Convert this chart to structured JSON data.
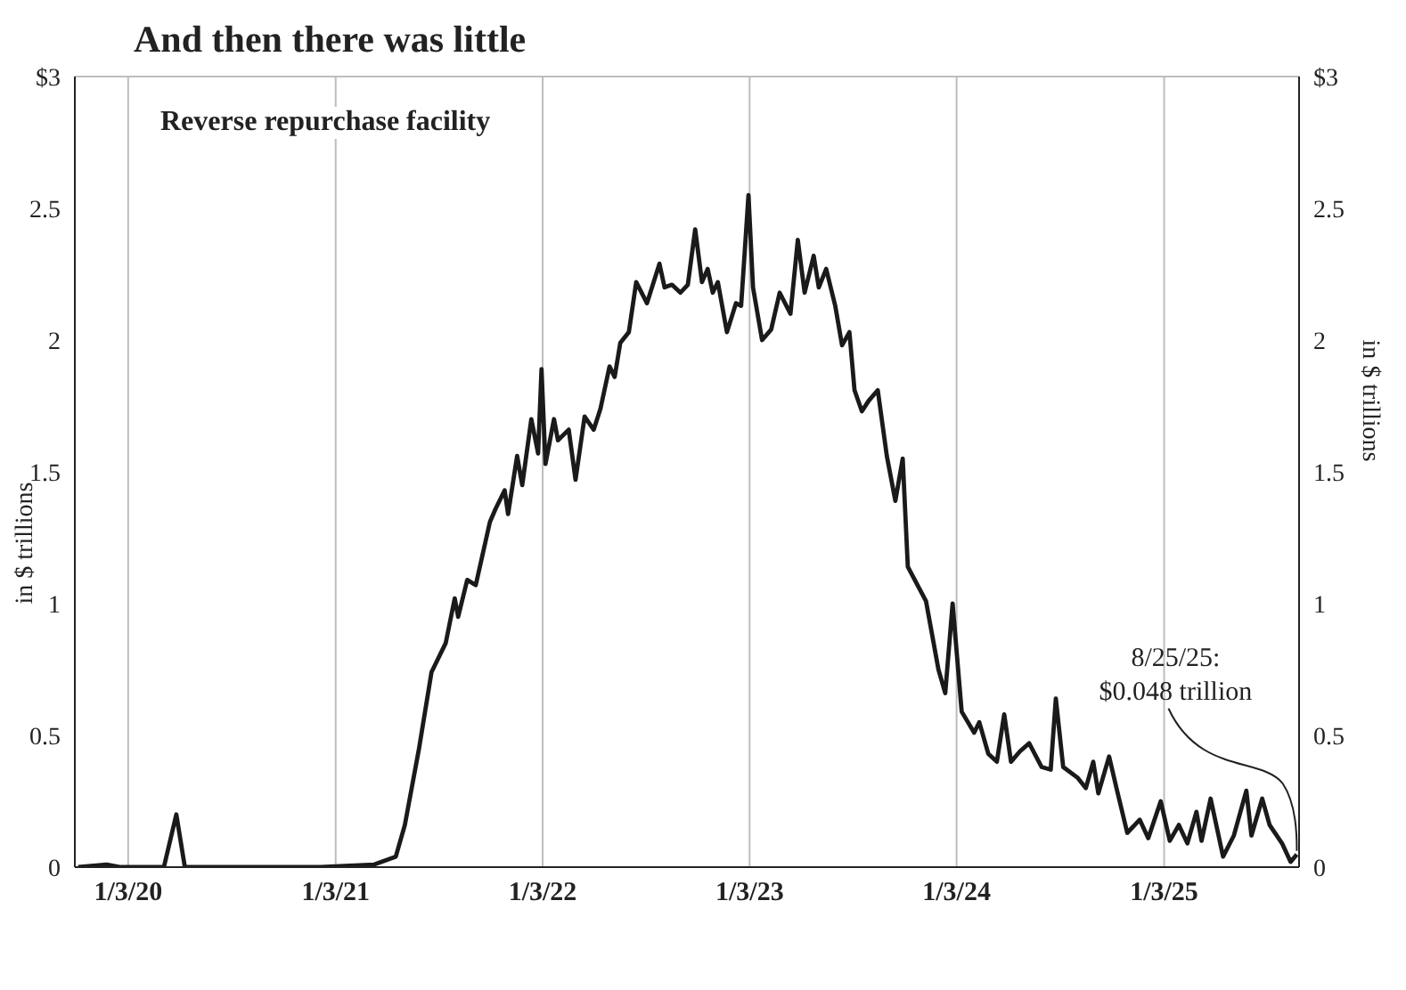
{
  "chart_data": {
    "type": "line",
    "title": "And then there was little",
    "subtitle": "Reverse repurchase facility",
    "ylabel": "in $ trillions",
    "y2label": "in $ trillions",
    "x": [
      "2019-10-07",
      "2019-11-26",
      "2019-12-21",
      "2020-03-06",
      "2020-03-28",
      "2020-04-12",
      "2020-12-07",
      "2021-03-12",
      "2021-04-19",
      "2021-05-05",
      "2021-05-30",
      "2021-06-21",
      "2021-07-16",
      "2021-08-01",
      "2021-08-07",
      "2021-08-23",
      "2021-09-07",
      "2021-10-02",
      "2021-10-12",
      "2021-10-28",
      "2021-11-03",
      "2021-11-19",
      "2021-11-28",
      "2021-12-14",
      "2021-12-26",
      "2022-01-01",
      "2022-01-08",
      "2022-01-23",
      "2022-01-30",
      "2022-02-18",
      "2022-03-02",
      "2022-03-18",
      "2022-04-03",
      "2022-04-15",
      "2022-05-01",
      "2022-05-10",
      "2022-05-20",
      "2022-06-04",
      "2022-06-17",
      "2022-07-06",
      "2022-07-28",
      "2022-08-06",
      "2022-08-19",
      "2022-09-03",
      "2022-09-16",
      "2022-09-29",
      "2022-10-11",
      "2022-10-21",
      "2022-10-30",
      "2022-11-08",
      "2022-11-24",
      "2022-12-10",
      "2022-12-19",
      "2023-01-01",
      "2023-01-09",
      "2023-01-25",
      "2023-02-10",
      "2023-02-25",
      "2023-03-16",
      "2023-03-29",
      "2023-04-10",
      "2023-04-26",
      "2023-05-05",
      "2023-05-18",
      "2023-06-03",
      "2023-06-15",
      "2023-06-28",
      "2023-07-07",
      "2023-07-20",
      "2023-08-01",
      "2023-08-17",
      "2023-09-02",
      "2023-09-17",
      "2023-09-30",
      "2023-10-09",
      "2023-11-10",
      "2023-12-02",
      "2023-12-14",
      "2023-12-27",
      "2024-01-12",
      "2024-02-03",
      "2024-02-12",
      "2024-02-28",
      "2024-03-14",
      "2024-03-27",
      "2024-04-08",
      "2024-04-24",
      "2024-05-10",
      "2024-06-01",
      "2024-06-17",
      "2024-06-26",
      "2024-07-09",
      "2024-08-03",
      "2024-08-18",
      "2024-08-31",
      "2024-09-09",
      "2024-09-28",
      "2024-10-11",
      "2024-10-30",
      "2024-11-21",
      "2024-12-06",
      "2024-12-28",
      "2025-01-13",
      "2025-01-29",
      "2025-02-13",
      "2025-03-01",
      "2025-03-10",
      "2025-03-26",
      "2025-04-17",
      "2025-05-06",
      "2025-05-28",
      "2025-06-06",
      "2025-06-25",
      "2025-07-08",
      "2025-07-30",
      "2025-08-14",
      "2025-08-25"
    ],
    "series": [
      {
        "color": "#1a1a1a",
        "values": [
          0,
          0.01,
          0,
          0,
          0.2,
          0,
          0,
          0.01,
          0.04,
          0.16,
          0.45,
          0.74,
          0.85,
          1.02,
          0.95,
          1.09,
          1.07,
          1.31,
          1.36,
          1.43,
          1.34,
          1.56,
          1.45,
          1.7,
          1.57,
          1.89,
          1.53,
          1.7,
          1.62,
          1.66,
          1.47,
          1.71,
          1.66,
          1.74,
          1.9,
          1.86,
          1.99,
          2.03,
          2.22,
          2.14,
          2.29,
          2.2,
          2.21,
          2.18,
          2.21,
          2.42,
          2.22,
          2.27,
          2.18,
          2.22,
          2.03,
          2.14,
          2.13,
          2.55,
          2.2,
          2,
          2.04,
          2.18,
          2.1,
          2.38,
          2.18,
          2.32,
          2.2,
          2.27,
          2.13,
          1.98,
          2.03,
          1.81,
          1.73,
          1.77,
          1.81,
          1.56,
          1.39,
          1.55,
          1.14,
          1.01,
          0.75,
          0.66,
          1,
          0.59,
          0.51,
          0.55,
          0.43,
          0.4,
          0.58,
          0.4,
          0.44,
          0.47,
          0.38,
          0.37,
          0.64,
          0.38,
          0.34,
          0.3,
          0.4,
          0.28,
          0.42,
          0.3,
          0.13,
          0.18,
          0.11,
          0.25,
          0.1,
          0.16,
          0.09,
          0.21,
          0.1,
          0.26,
          0.04,
          0.12,
          0.29,
          0.12,
          0.26,
          0.16,
          0.09,
          0.02,
          0.048
        ]
      }
    ],
    "xlim": [
      "2019-10-01",
      "2025-08-29"
    ],
    "xticks": [
      {
        "value": "2020-01-03",
        "label": "1/3/20"
      },
      {
        "value": "2021-01-03",
        "label": "1/3/21"
      },
      {
        "value": "2022-01-03",
        "label": "1/3/22"
      },
      {
        "value": "2023-01-03",
        "label": "1/3/23"
      },
      {
        "value": "2024-01-03",
        "label": "1/3/24"
      },
      {
        "value": "2025-01-03",
        "label": "1/3/25"
      }
    ],
    "ylim": [
      0,
      3
    ],
    "yticks": [
      0,
      0.5,
      1,
      1.5,
      2,
      2.5,
      {
        "value": 3,
        "label": "$3"
      }
    ],
    "y2lim": [
      0,
      3
    ],
    "y2ticks": [
      0,
      0.5,
      1,
      1.5,
      2,
      2.5,
      {
        "value": 3,
        "label": "$3"
      }
    ],
    "grid": true,
    "legend": false,
    "marker": "none",
    "line_style": "solid",
    "annotations": [
      {
        "text": "8/25/25:\n$0.048 trillion",
        "x": "2025-08-25",
        "y": 0.048
      }
    ]
  }
}
